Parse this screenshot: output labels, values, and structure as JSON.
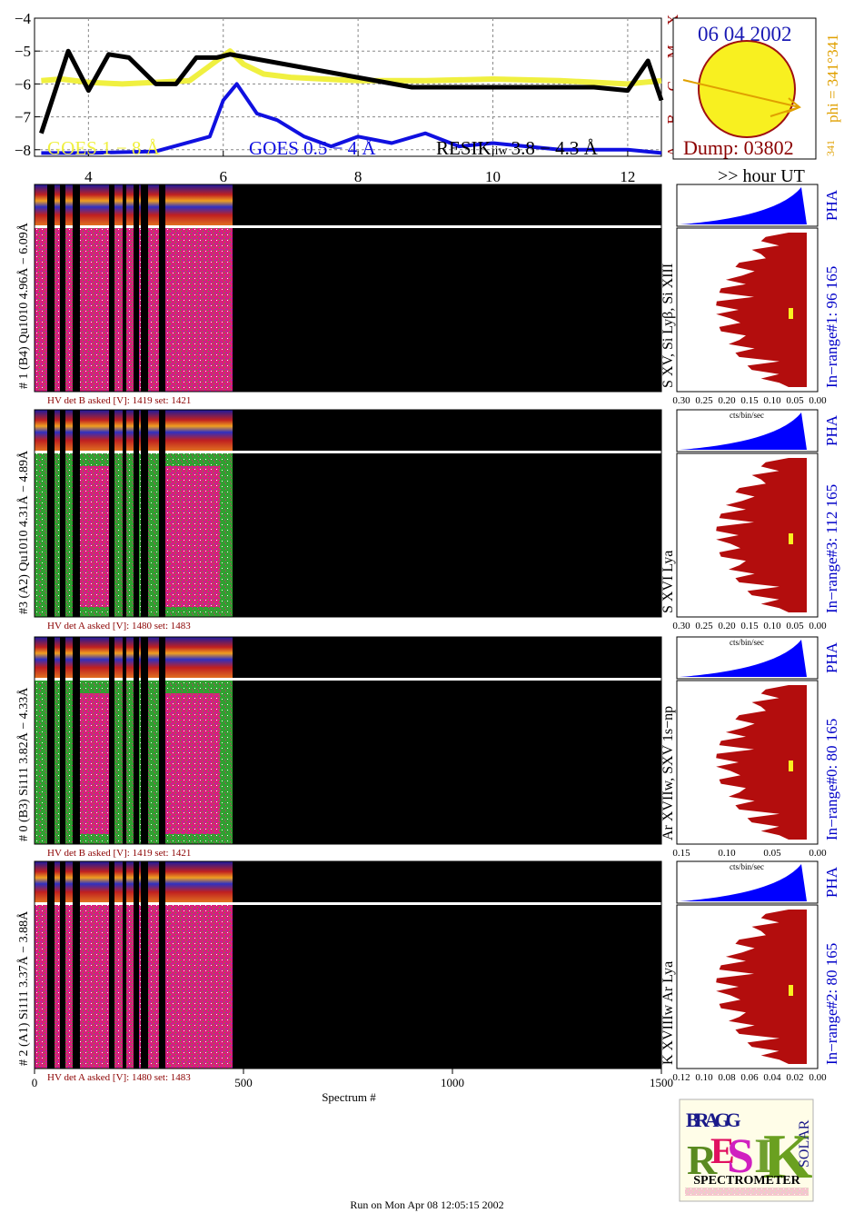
{
  "header": {
    "date": "06 04 2002",
    "dump": "Dump: 03802",
    "phi": "phi = 341°341",
    "phi_small": "341",
    "goes_classes": [
      "A",
      "B",
      "C",
      "M",
      "X"
    ],
    "hour_label": ">> hour UT"
  },
  "colors": {
    "goes_long": "#f0f040",
    "goes_short": "#1010e0",
    "resik": "#000000",
    "pha": "#0000ff",
    "spectrum": "#b30d0d",
    "label_red": "#8b0000",
    "label_blue": "#0000c8",
    "phi_color": "#e0a000"
  },
  "chart_data": {
    "type": "line",
    "title": "",
    "xlabel": "",
    "ylabel": "",
    "xlim": [
      3.2,
      12.5
    ],
    "ylim": [
      -8.2,
      -4.0
    ],
    "x_ticks": [
      "4",
      "6",
      "8",
      "10",
      "12"
    ],
    "y_ticks": [
      "−4",
      "−5",
      "−6",
      "−7",
      "−8"
    ],
    "series": [
      {
        "name": "GOES 1 − 8 Å",
        "x": [
          3.3,
          3.6,
          4.0,
          4.5,
          5.0,
          5.5,
          5.9,
          6.1,
          6.3,
          6.6,
          7.0,
          7.5,
          8.0,
          9.0,
          10.0,
          11.0,
          12.0,
          12.5
        ],
        "y": [
          -5.9,
          -5.85,
          -5.95,
          -6.0,
          -5.95,
          -5.9,
          -5.3,
          -5.0,
          -5.4,
          -5.7,
          -5.8,
          -5.85,
          -5.9,
          -5.9,
          -5.85,
          -5.9,
          -6.0,
          -5.9
        ]
      },
      {
        "name": "GOES 0.5 − 4 Å",
        "x": [
          3.3,
          4.0,
          5.0,
          5.8,
          6.0,
          6.2,
          6.5,
          6.8,
          7.2,
          7.6,
          8.0,
          8.5,
          9.0,
          9.5,
          10.0,
          11.0,
          12.0,
          12.5
        ],
        "y": [
          -8.1,
          -8.1,
          -8.05,
          -7.6,
          -6.5,
          -6.0,
          -6.9,
          -7.1,
          -7.6,
          -7.9,
          -7.6,
          -7.8,
          -7.5,
          -7.9,
          -7.8,
          -8.0,
          -8.0,
          -8.1
        ]
      },
      {
        "name": "RESIK 3.8 − 4.3 Å",
        "x": [
          3.3,
          3.7,
          4.0,
          4.3,
          4.6,
          5.0,
          5.3,
          5.6,
          5.9,
          6.1,
          8.8,
          10.0,
          11.5,
          12.0,
          12.3,
          12.5
        ],
        "y": [
          -7.5,
          -5.0,
          -6.2,
          -5.1,
          -5.2,
          -6.0,
          -6.0,
          -5.2,
          -5.2,
          -5.1,
          -6.1,
          -6.1,
          -6.1,
          -6.2,
          -5.3,
          -6.5
        ]
      }
    ]
  },
  "legend": {
    "goes_long": "GOES 1 − 8 Å",
    "goes_short": "GOES 0.5 − 4 Å",
    "resik": "RESIK",
    "resik_sub": "iiw",
    "resik_range": "3.8 − 4.3 Å"
  },
  "panels": [
    {
      "ylabel": "# 1  (B4)  Qu1010  4.96Å − 6.09Å",
      "hv": "HV det B asked [V]:  1419  set:   1421",
      "side": "S XV, Si Lyβ, Si XIII",
      "range": "In−range#1:  96 165",
      "xticks": [
        "0.30",
        "0.25",
        "0.20",
        "0.15",
        "0.10",
        "0.05",
        "0.00"
      ],
      "pha": "PHA",
      "units": ""
    },
    {
      "ylabel": "#3  (A2)  Qu1010  4.31Å − 4.89Å",
      "hv": "HV det A asked [V]:  1480  set:   1483",
      "side": "S XVI Lya",
      "range": "In−range#3:  112 165",
      "xticks": [
        "0.30",
        "0.25",
        "0.20",
        "0.15",
        "0.10",
        "0.05",
        "0.00"
      ],
      "pha": "PHA",
      "units": "cts/bin/sec"
    },
    {
      "ylabel": "# 0  (B3)  Si111  3.82Å − 4.33Å",
      "hv": "HV det B asked [V]:  1419  set:   1421",
      "side": "Ar XVIIw,  SXV 1s−np",
      "range": "In−range#0:   80 165",
      "xticks": [
        "0.15",
        "0.10",
        "0.05",
        "0.00"
      ],
      "pha": "PHA",
      "units": "cts/bin/sec"
    },
    {
      "ylabel": "# 2  (A1)  Si111  3.37Å − 3.88Å",
      "hv": "HV det A asked [V]:  1480  set:   1483",
      "side": "K XVIIIw   Ar Lya",
      "range": "In−range#2:   80 165",
      "xticks": [
        "0.12",
        "0.10",
        "0.08",
        "0.06",
        "0.04",
        "0.02",
        "0.00"
      ],
      "pha": "PHA",
      "units": "cts/bin/sec"
    }
  ],
  "bottom_axis": {
    "ticks": [
      "0",
      "500",
      "1000",
      "1500"
    ],
    "label": "Spectrum #"
  },
  "logo": {
    "caption": "SPECTROMETER",
    "letters_top": "BRAGG",
    "letters_mid": "RESIK",
    "letters_side": "SOLAR"
  },
  "footer": "Run on Mon Apr 08 12:05:15 2002"
}
